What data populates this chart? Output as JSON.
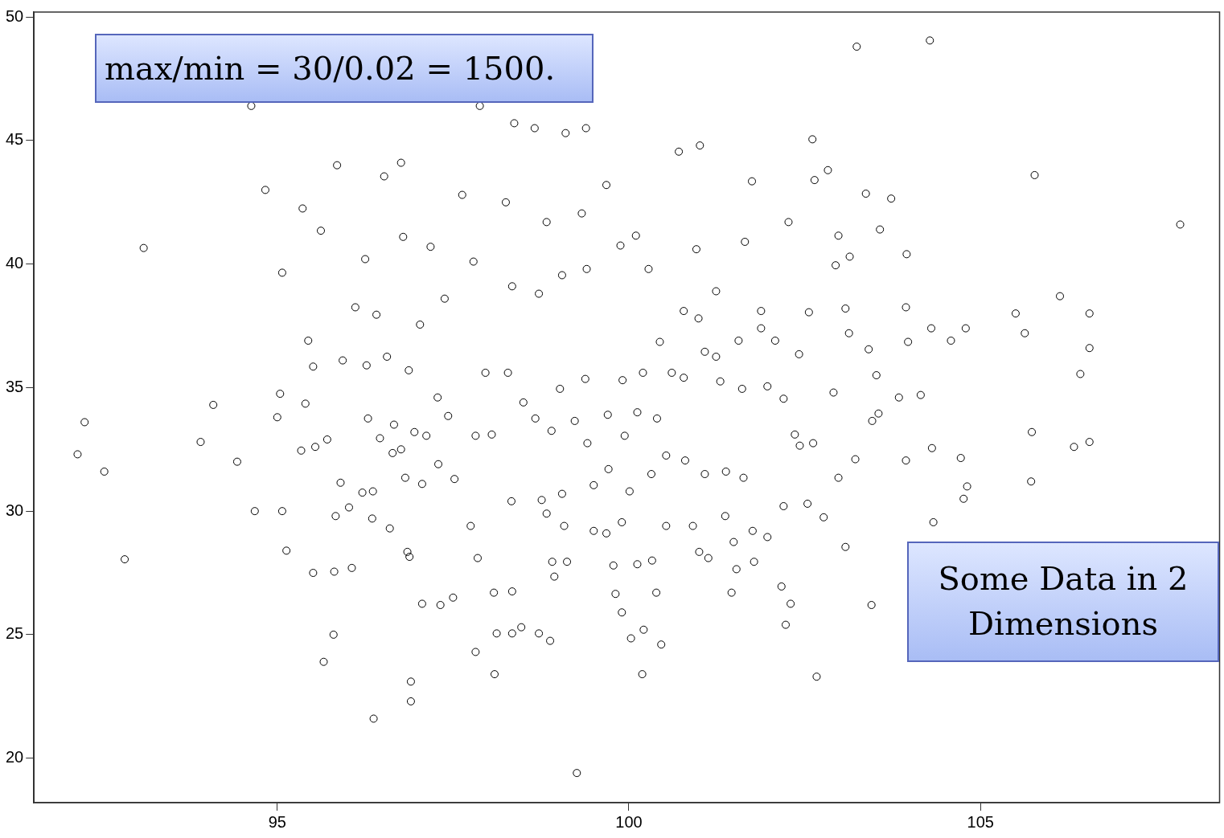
{
  "chart_data": {
    "type": "scatter",
    "annotations": [
      "max/min = 30/0.02 = 1500.",
      "Some Data in 2 Dimensions"
    ],
    "xlim": [
      91.54,
      108.4
    ],
    "ylim": [
      18.2,
      50.2
    ],
    "xticks": [
      95,
      100,
      105
    ],
    "yticks": [
      20,
      25,
      30,
      35,
      40,
      45,
      50
    ],
    "grid": false,
    "legend": false,
    "marker": "circle",
    "series": [
      {
        "color": "#000000",
        "x": [
          104.28,
          103.24,
          107.84,
          93.1,
          92.16,
          92.26,
          92.54,
          92.83,
          94.09,
          93.91,
          94.43,
          94.63,
          94.83,
          94.68,
          95.07,
          95.13,
          95.51,
          95.66,
          95.8,
          96.37,
          96.9,
          96.9,
          99.26,
          102.67,
          103.45,
          104.33,
          104.76,
          104.81,
          105.72,
          105.73,
          106.33,
          106.55,
          106.42,
          106.55,
          106.55,
          106.13,
          105.5,
          105.63,
          105.77,
          103.95,
          103.73,
          103.37,
          102.83,
          102.61,
          102.64,
          101.75,
          101.01,
          100.71,
          99.39,
          99.1,
          98.66,
          98.37,
          97.88,
          96.76,
          96.52,
          95.85,
          95.36,
          95.62,
          95.07,
          96.25,
          96.79,
          97.18,
          97.63,
          98.25,
          98.83,
          99.33,
          99.68,
          100.1,
          100.96,
          101.65,
          102.27,
          102.98,
          103.57,
          103.94,
          103.08,
          102.56,
          101.88,
          101.24,
          100.78,
          100.28,
          99.88,
          99.4,
          99.05,
          98.72,
          98.34,
          97.79,
          97.38,
          97.03,
          96.41,
          96.11,
          95.44,
          95.51,
          95.93,
          96.27,
          96.56,
          96.87,
          95.04,
          95.4,
          95.0,
          95.34,
          95.54,
          95.71,
          96.29,
          96.46,
          96.64,
          96.76,
          96.66,
          96.95,
          97.12,
          97.28,
          97.43,
          97.29,
          97.52,
          97.82,
          98.05,
          97.96,
          98.28,
          98.5,
          98.67,
          98.9,
          99.02,
          99.38,
          99.23,
          99.41,
          99.7,
          99.94,
          100.12,
          100.4,
          99.91,
          100.2,
          100.61,
          100.44,
          100.78,
          101.08,
          101.3,
          101.61,
          101.97,
          102.2,
          102.36,
          102.43,
          102.62,
          102.91,
          103.22,
          103.46,
          103.55,
          103.84,
          104.15,
          103.94,
          104.31,
          104.72,
          104.58,
          104.79,
          104.3,
          103.97,
          103.52,
          103.41,
          103.13,
          102.94,
          103.14,
          102.42,
          102.08,
          101.88,
          101.56,
          101.24,
          100.99,
          101.63,
          101.38,
          101.08,
          100.8,
          100.53,
          100.32,
          100.01,
          99.71,
          99.5,
          99.05,
          98.76,
          98.33,
          98.83,
          99.08,
          99.5,
          99.68,
          99.9,
          100.53,
          100.91,
          101.37,
          101.76,
          101.97,
          101.49,
          101.0,
          101.13,
          101.78,
          101.53,
          102.17,
          102.3,
          102.23,
          102.77,
          103.08,
          102.98,
          102.54,
          102.2,
          101.46,
          100.39,
          100.33,
          100.12,
          99.78,
          99.81,
          99.9,
          100.21,
          100.03,
          100.46,
          100.19,
          99.12,
          98.91,
          98.94,
          98.88,
          98.72,
          98.47,
          98.34,
          98.12,
          98.08,
          98.34,
          97.85,
          97.82,
          98.09,
          97.5,
          97.32,
          97.06,
          96.88,
          96.85,
          96.6,
          96.35,
          96.36,
          96.21,
          96.02,
          95.83,
          95.9,
          96.06,
          95.81,
          96.82,
          97.06,
          97.75
        ],
        "values": [
          49.05,
          48.8,
          41.6,
          40.65,
          32.3,
          33.6,
          31.6,
          28.05,
          34.3,
          32.8,
          32.0,
          46.4,
          43.0,
          30.0,
          30.0,
          28.4,
          27.5,
          23.9,
          25.0,
          21.6,
          22.3,
          23.1,
          19.4,
          23.3,
          26.2,
          29.55,
          30.5,
          31.0,
          31.2,
          33.2,
          32.6,
          32.8,
          35.55,
          36.6,
          38.0,
          38.7,
          38.0,
          37.2,
          43.6,
          40.4,
          42.65,
          42.85,
          43.8,
          45.05,
          43.4,
          43.35,
          44.8,
          44.55,
          45.5,
          45.3,
          45.5,
          45.7,
          46.4,
          44.1,
          43.55,
          44.0,
          42.25,
          41.35,
          39.65,
          40.2,
          41.1,
          40.7,
          42.8,
          42.5,
          41.7,
          42.05,
          43.2,
          41.15,
          40.6,
          40.9,
          41.7,
          41.15,
          41.4,
          38.25,
          38.2,
          38.05,
          38.1,
          38.9,
          38.1,
          39.8,
          40.75,
          39.8,
          39.55,
          38.8,
          39.1,
          40.1,
          38.6,
          37.55,
          37.95,
          38.25,
          36.9,
          35.85,
          36.1,
          35.9,
          36.25,
          35.7,
          34.75,
          34.35,
          33.8,
          32.45,
          32.6,
          32.9,
          33.75,
          32.95,
          32.35,
          32.5,
          33.5,
          33.2,
          33.05,
          34.6,
          33.85,
          31.9,
          31.3,
          33.05,
          33.1,
          35.6,
          35.6,
          34.4,
          33.75,
          33.25,
          34.95,
          35.35,
          33.65,
          32.75,
          33.9,
          33.05,
          34.0,
          33.75,
          35.3,
          35.6,
          35.6,
          36.85,
          35.4,
          36.45,
          35.25,
          34.95,
          35.05,
          34.55,
          33.1,
          32.65,
          32.75,
          34.8,
          32.1,
          33.65,
          33.95,
          34.6,
          34.7,
          32.05,
          32.55,
          32.15,
          36.9,
          37.4,
          37.4,
          36.85,
          35.5,
          36.55,
          37.2,
          39.95,
          40.3,
          36.35,
          36.9,
          37.4,
          36.9,
          36.25,
          37.8,
          31.35,
          31.6,
          31.5,
          32.05,
          32.25,
          31.5,
          30.8,
          31.7,
          31.05,
          30.7,
          30.45,
          30.4,
          29.9,
          29.4,
          29.2,
          29.1,
          29.55,
          29.4,
          29.4,
          29.8,
          29.2,
          28.95,
          28.75,
          28.35,
          28.1,
          27.95,
          27.65,
          26.95,
          26.25,
          25.4,
          29.75,
          28.55,
          31.35,
          30.3,
          30.2,
          26.7,
          26.7,
          28.0,
          27.85,
          27.8,
          26.65,
          25.9,
          25.2,
          24.85,
          24.6,
          23.4,
          27.95,
          27.95,
          27.35,
          24.75,
          25.05,
          25.3,
          25.05,
          25.05,
          26.7,
          26.75,
          28.1,
          24.3,
          23.4,
          26.5,
          26.2,
          26.25,
          28.15,
          28.35,
          29.3,
          29.7,
          30.8,
          30.75,
          30.15,
          29.8,
          31.15,
          27.7,
          27.55,
          31.35,
          31.1,
          29.4
        ]
      }
    ]
  }
}
